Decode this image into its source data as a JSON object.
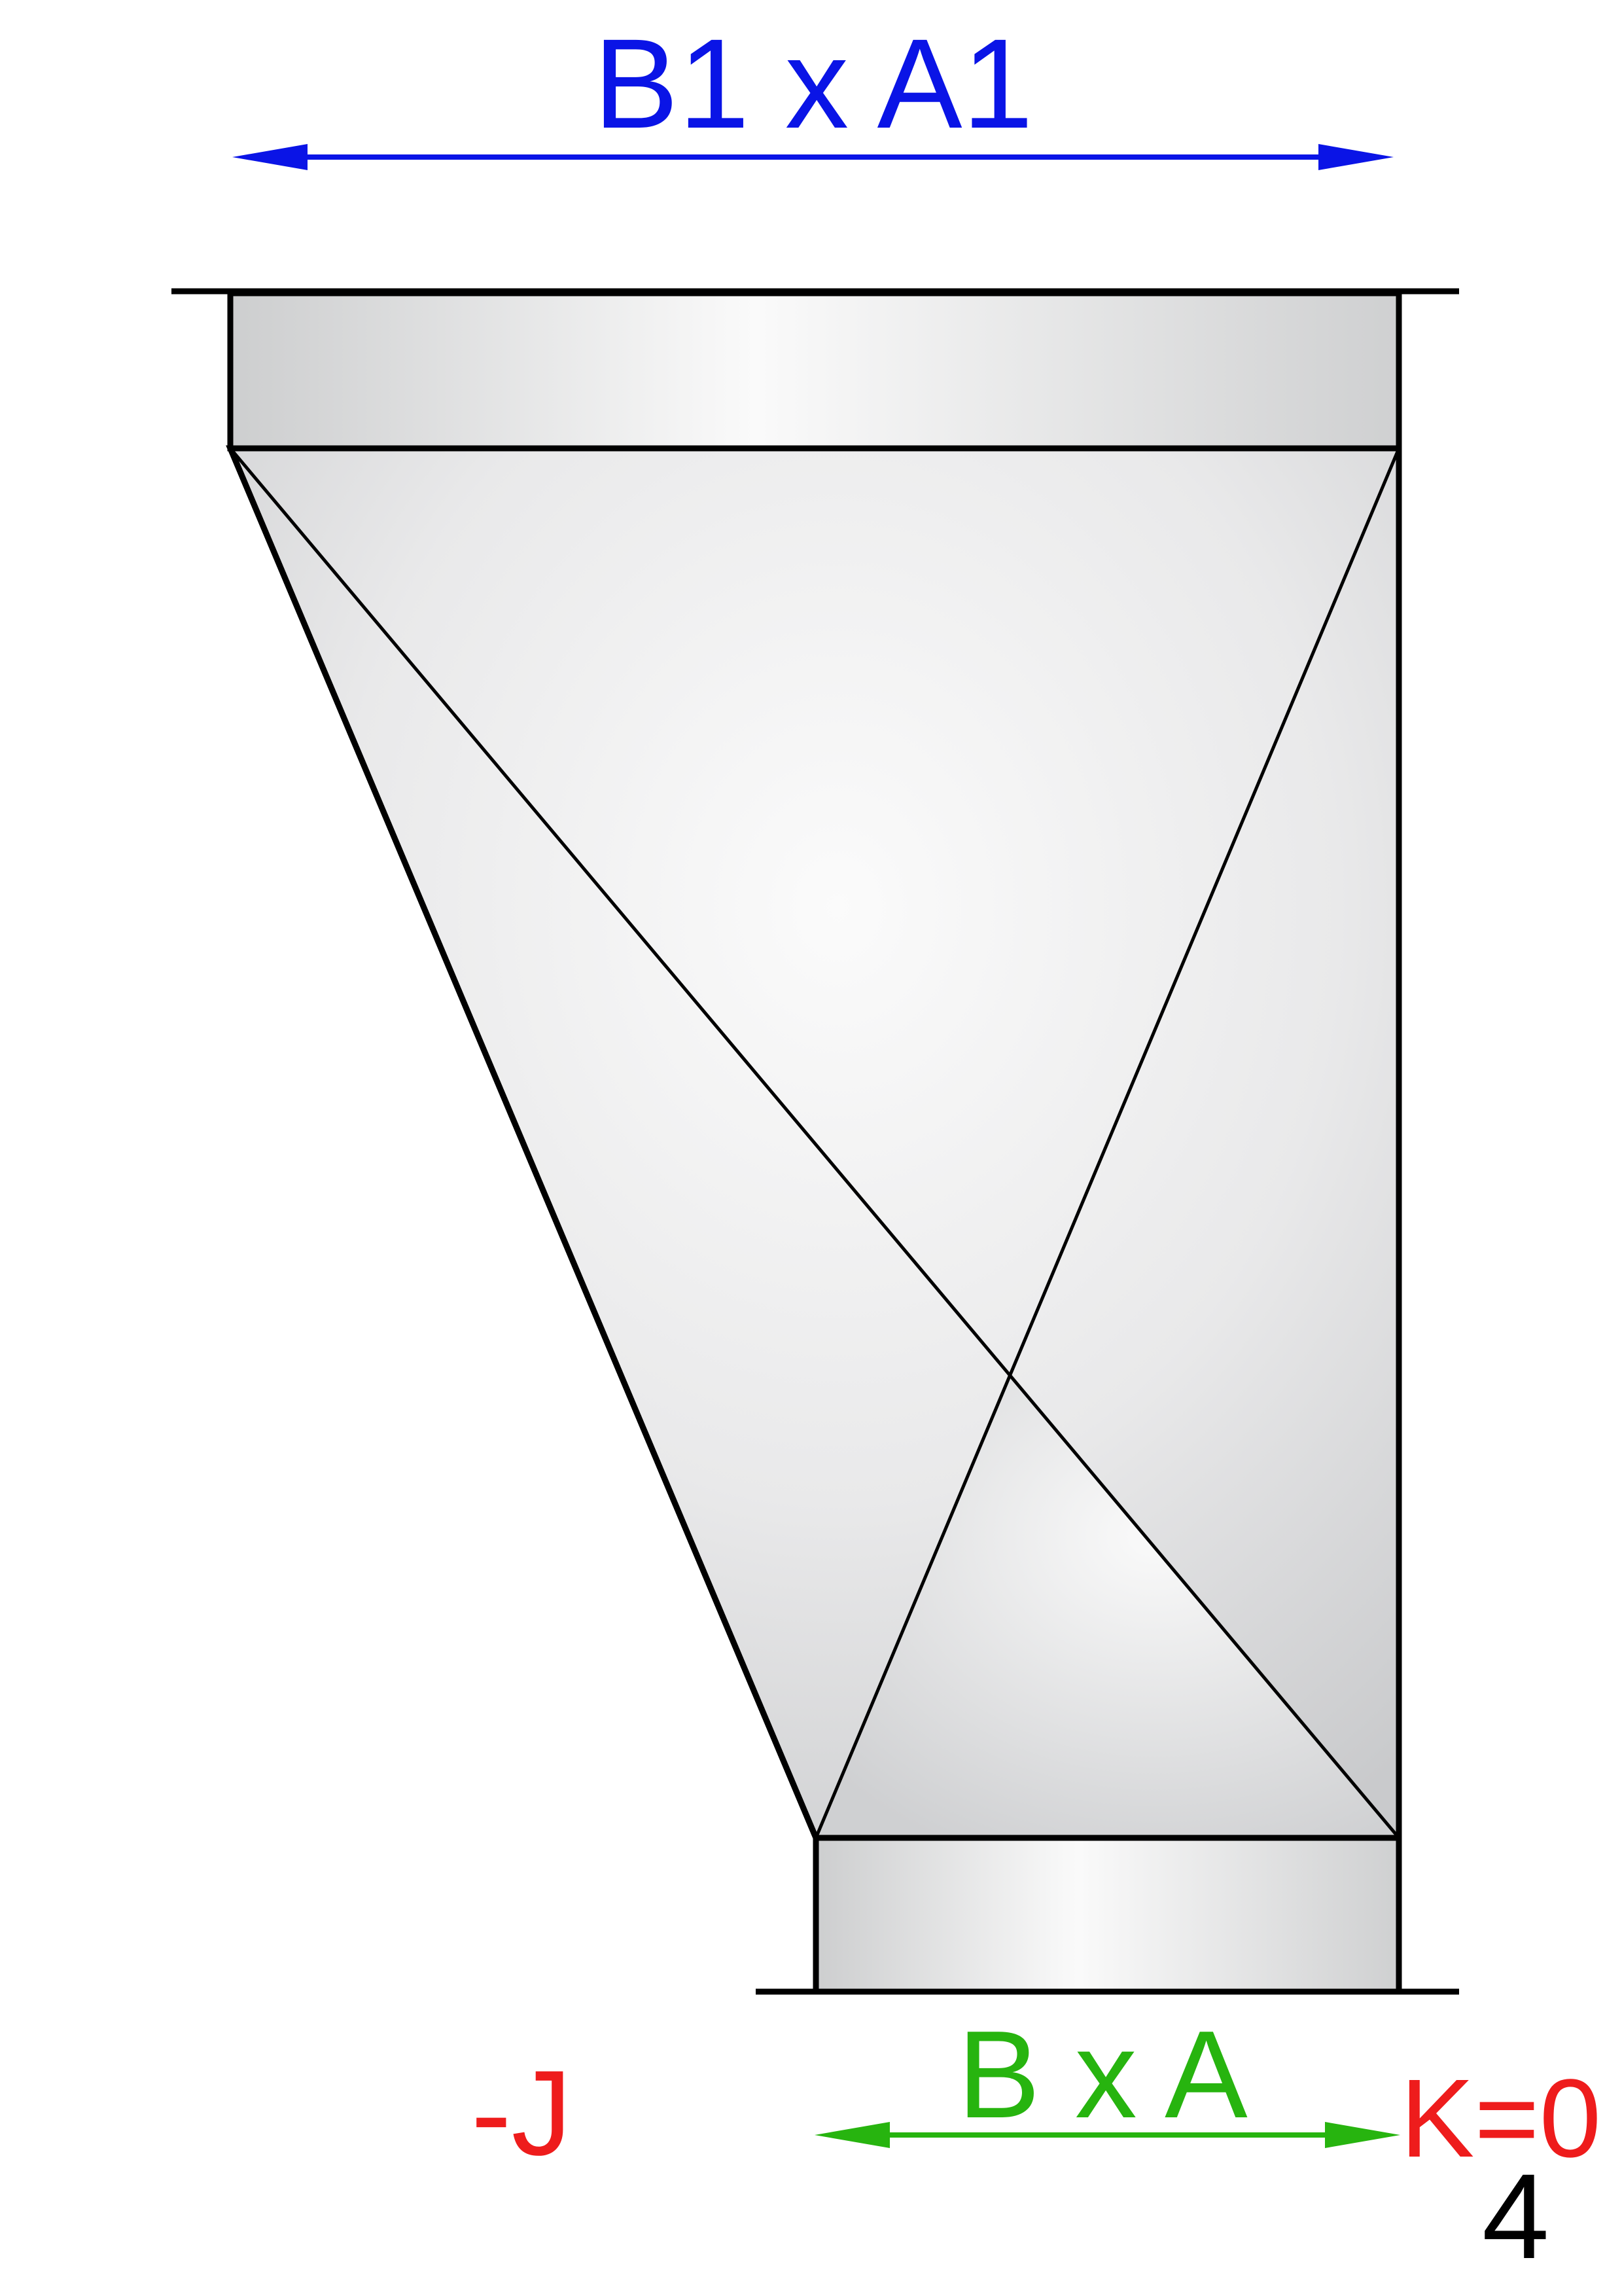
{
  "labels": {
    "top_dimension": "B1 x A1",
    "bottom_dimension": "B x A",
    "offset_left": "-J",
    "offset_right": "K=0",
    "sheet_number": "4"
  },
  "colors": {
    "top_dimension": "#0a14e6",
    "bottom_dimension": "#27b40f",
    "offset": "#ee1c1c",
    "outline": "#000000",
    "fill_light": "#fafafa",
    "fill_dark": "#c9cacc"
  }
}
